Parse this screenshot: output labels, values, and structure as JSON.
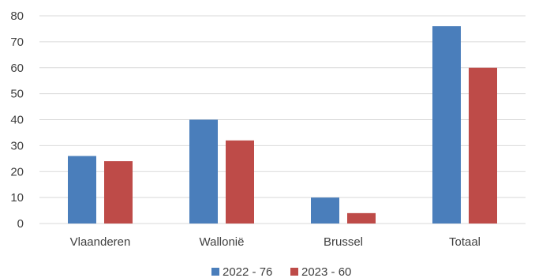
{
  "chart_data": {
    "type": "bar",
    "title": "",
    "xlabel": "",
    "ylabel": "",
    "categories": [
      "Vlaanderen",
      "Wallonië",
      "Brussel",
      "Totaal"
    ],
    "series": [
      {
        "name": "2022 - 76",
        "values": [
          26,
          40,
          10,
          76
        ],
        "color": "#4a7ebb"
      },
      {
        "name": "2023 - 60",
        "values": [
          24,
          32,
          4,
          60
        ],
        "color": "#be4b48"
      }
    ],
    "ylim": [
      0,
      80
    ],
    "yticks": [
      0,
      10,
      20,
      30,
      40,
      50,
      60,
      70,
      80
    ],
    "grid": true,
    "legend_position": "bottom-center"
  }
}
